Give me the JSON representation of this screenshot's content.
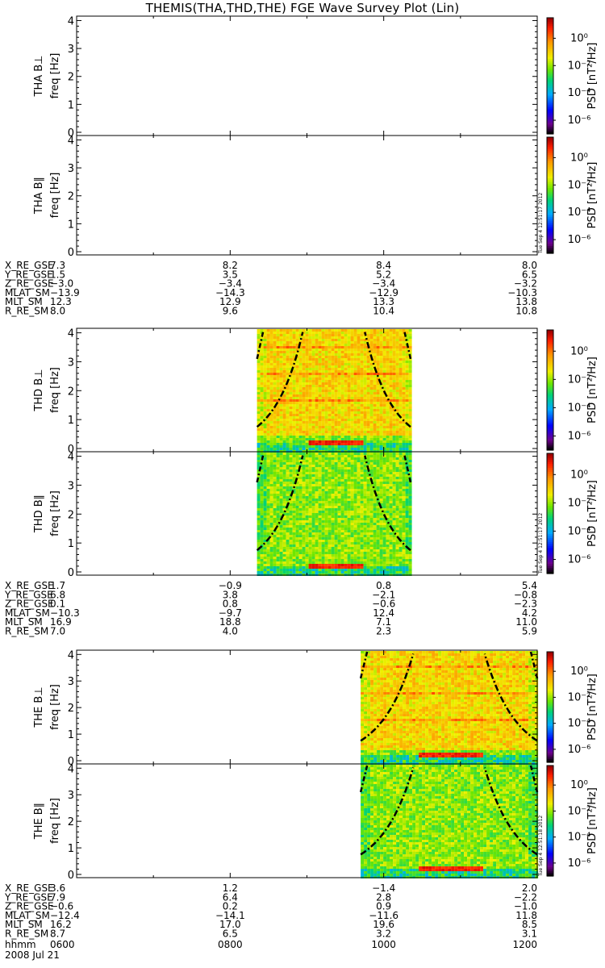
{
  "title": "THEMIS(THA,THD,THE) FGE Wave Survey Plot (Lin)",
  "colorbar": {
    "label": "PSD [nT²/Hz]",
    "tick_labels": [
      "10⁰",
      "10⁻²",
      "10⁻⁴",
      "10⁻⁶"
    ],
    "log_range": [
      -7,
      1.5
    ]
  },
  "freq_axis_label": "freq [Hz]",
  "timestamps": [
    "Tue Sep  4 12:51:17 2012",
    "Tue Sep  4 12:51:17 2012",
    "Tue Sep  4 12:51:18 2012"
  ],
  "time_axis": {
    "row_label": "hhmm",
    "date": "2008 Jul 21",
    "ticks": [
      "0600",
      "0800",
      "1000",
      "1200"
    ]
  },
  "eph_labels": [
    "X_RE_GSE",
    "Y_RE_GSE",
    "Z_RE_GSE",
    "MLAT_SM",
    "MLT_SM",
    "R_RE_SM"
  ],
  "chart_data": [
    {
      "type": "heatmap",
      "probe": "THA",
      "ylabel_perp": "THA B⊥",
      "ylabel_par": "THA B∥",
      "ylim": [
        0,
        4.1
      ],
      "yticks": [
        0,
        1,
        2,
        3,
        4
      ],
      "x": [
        "0600",
        "0800",
        "1000",
        "1200"
      ],
      "data_coverage_hours": null,
      "ephemeris": {
        "X_RE_GSE": [
          "7.3",
          "8.2",
          "8.4",
          "8.0"
        ],
        "Y_RE_GSE": [
          "1.5",
          "3.5",
          "5.2",
          "6.5"
        ],
        "Z_RE_GSE": [
          "−3.0",
          "−3.4",
          "−3.4",
          "−3.2"
        ],
        "MLAT_SM": [
          "−13.9",
          "−14.3",
          "−12.9",
          "−10.3"
        ],
        "MLT_SM": [
          "12.3",
          "12.9",
          "13.3",
          "13.8"
        ],
        "R_RE_SM": [
          "8.0",
          "9.6",
          "10.4",
          "10.8"
        ]
      }
    },
    {
      "type": "heatmap",
      "probe": "THD",
      "ylabel_perp": "THD B⊥",
      "ylabel_par": "THD B∥",
      "ylim": [
        0,
        4.1
      ],
      "yticks": [
        0,
        1,
        2,
        3,
        4
      ],
      "x": [
        "0600",
        "0800",
        "1000",
        "1200"
      ],
      "data_coverage_hours": [
        8.35,
        10.35
      ],
      "ephemeris": {
        "X_RE_GSE": [
          "1.7",
          "−0.9",
          "0.8",
          "5.4"
        ],
        "Y_RE_GSE": [
          "6.8",
          "3.8",
          "−2.1",
          "−0.8"
        ],
        "Z_RE_GSE": [
          "0.1",
          "0.8",
          "−0.6",
          "−2.3"
        ],
        "MLAT_SM": [
          "−10.3",
          "−9.7",
          "12.4",
          "4.2"
        ],
        "MLT_SM": [
          "16.9",
          "18.8",
          "7.1",
          "11.0"
        ],
        "R_RE_SM": [
          "7.0",
          "4.0",
          "2.3",
          "5.9"
        ]
      }
    },
    {
      "type": "heatmap",
      "probe": "THE",
      "ylabel_perp": "THE B⊥",
      "ylabel_par": "THE B∥",
      "ylim": [
        0,
        4.1
      ],
      "yticks": [
        0,
        1,
        2,
        3,
        4
      ],
      "x": [
        "0600",
        "0800",
        "1000",
        "1200"
      ],
      "data_coverage_hours": [
        9.7,
        12.0
      ],
      "ephemeris": {
        "X_RE_GSE": [
          "3.6",
          "1.2",
          "−1.4",
          "2.0"
        ],
        "Y_RE_GSE": [
          "7.9",
          "6.4",
          "2.8",
          "−2.2"
        ],
        "Z_RE_GSE": [
          "−0.6",
          "0.2",
          "0.9",
          "−1.0"
        ],
        "MLAT_SM": [
          "−12.4",
          "−14.1",
          "−11.6",
          "11.8"
        ],
        "MLT_SM": [
          "16.2",
          "17.0",
          "19.6",
          "8.5"
        ],
        "R_RE_SM": [
          "8.7",
          "6.5",
          "3.2",
          "3.1"
        ]
      }
    }
  ]
}
